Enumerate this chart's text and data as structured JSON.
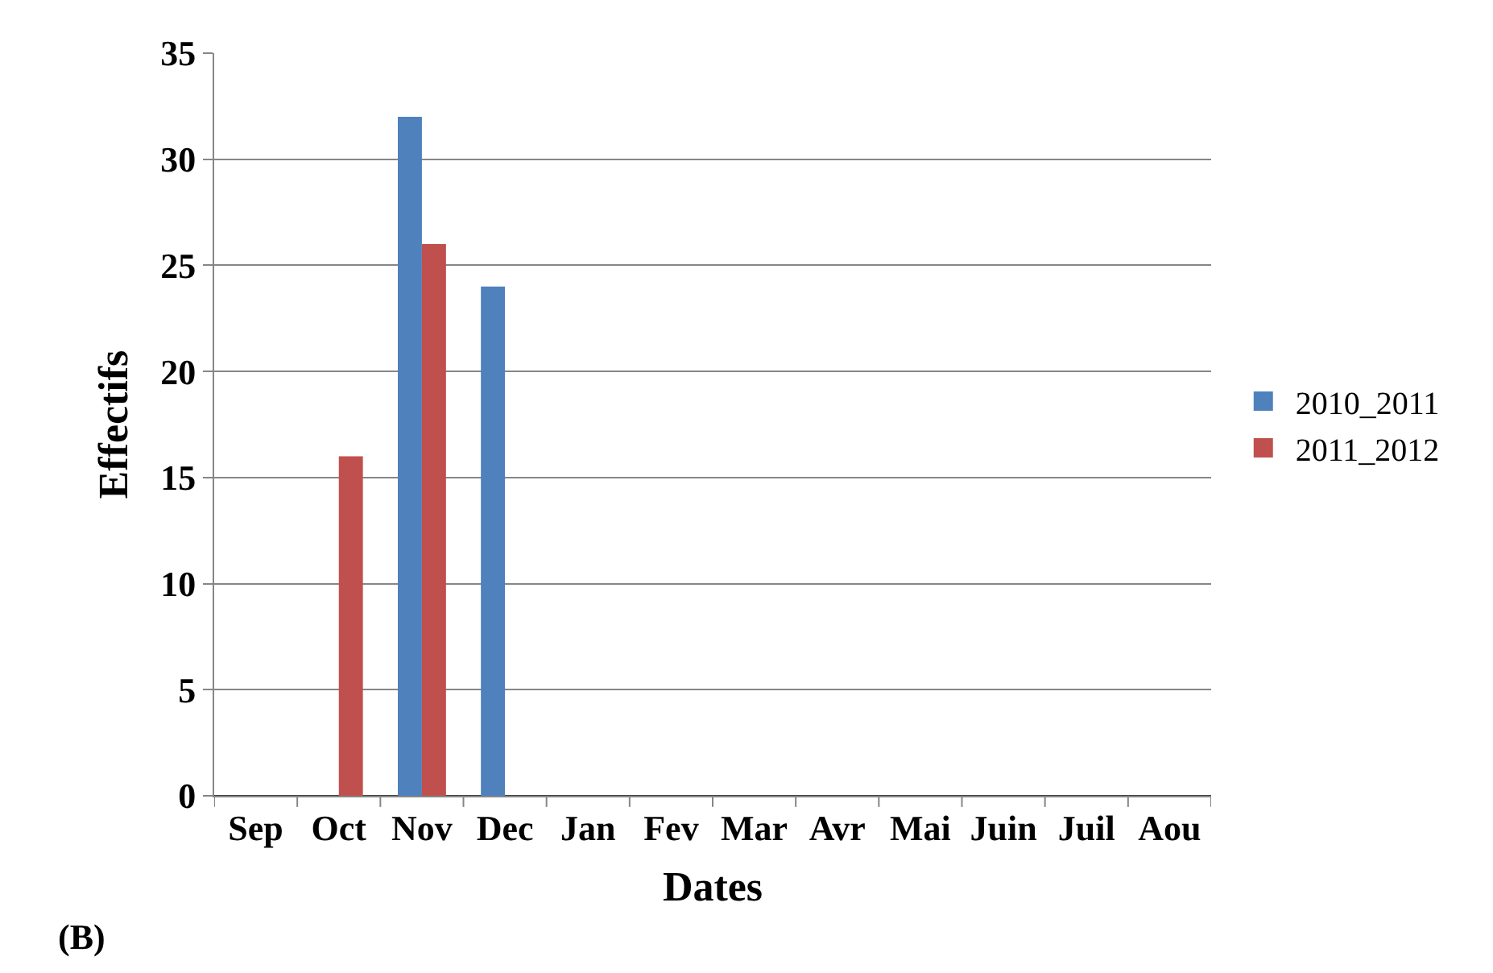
{
  "chart_data": {
    "type": "bar",
    "xlabel": "Dates",
    "ylabel": "Effectifs",
    "categories": [
      "Sep",
      "Oct",
      "Nov",
      "Dec",
      "Jan",
      "Fev",
      "Mar",
      "Avr",
      "Mai",
      "Juin",
      "Juil",
      "Aou"
    ],
    "series": [
      {
        "name": "2010_2011",
        "color": "#4f81bd",
        "values": [
          0,
          0,
          32,
          24,
          0,
          0,
          0,
          0,
          0,
          0,
          0,
          0
        ]
      },
      {
        "name": "2011_2012",
        "color": "#c0504d",
        "values": [
          0,
          16,
          26,
          0,
          0,
          0,
          0,
          0,
          0,
          0,
          0,
          0
        ]
      }
    ],
    "ylim": [
      0,
      35
    ],
    "yticks": [
      0,
      5,
      10,
      15,
      20,
      25,
      30,
      35
    ],
    "grid": "y",
    "legend": "right",
    "annotations": [
      "(B)"
    ]
  }
}
